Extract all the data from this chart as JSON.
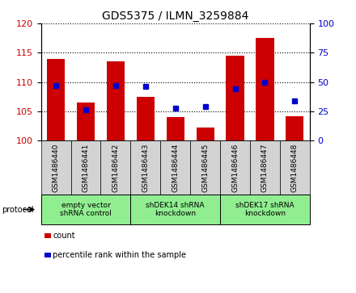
{
  "title": "GDS5375 / ILMN_3259884",
  "samples": [
    "GSM1486440",
    "GSM1486441",
    "GSM1486442",
    "GSM1486443",
    "GSM1486444",
    "GSM1486445",
    "GSM1486446",
    "GSM1486447",
    "GSM1486448"
  ],
  "counts": [
    114.0,
    106.5,
    113.5,
    107.5,
    104.0,
    102.2,
    114.5,
    117.5,
    104.2
  ],
  "percentile_ranks": [
    47,
    26,
    47,
    46,
    28,
    29,
    44,
    50,
    34
  ],
  "ylim_left": [
    100,
    120
  ],
  "ylim_right": [
    0,
    100
  ],
  "yticks_left": [
    100,
    105,
    110,
    115,
    120
  ],
  "yticks_right": [
    0,
    25,
    50,
    75,
    100
  ],
  "bar_color": "#cc0000",
  "dot_color": "#0000cc",
  "bar_bottom": 100,
  "groups": [
    {
      "label": "empty vector\nshRNA control",
      "start": 0,
      "end": 3,
      "color": "#90ee90"
    },
    {
      "label": "shDEK14 shRNA\nknockdown",
      "start": 3,
      "end": 6,
      "color": "#90ee90"
    },
    {
      "label": "shDEK17 shRNA\nknockdown",
      "start": 6,
      "end": 9,
      "color": "#90ee90"
    }
  ],
  "legend_items": [
    {
      "label": "count",
      "color": "#cc0000"
    },
    {
      "label": "percentile rank within the sample",
      "color": "#0000cc"
    }
  ],
  "protocol_label": "protocol",
  "background_color": "#ffffff",
  "sample_bg_color": "#d3d3d3",
  "title_fontsize": 10
}
